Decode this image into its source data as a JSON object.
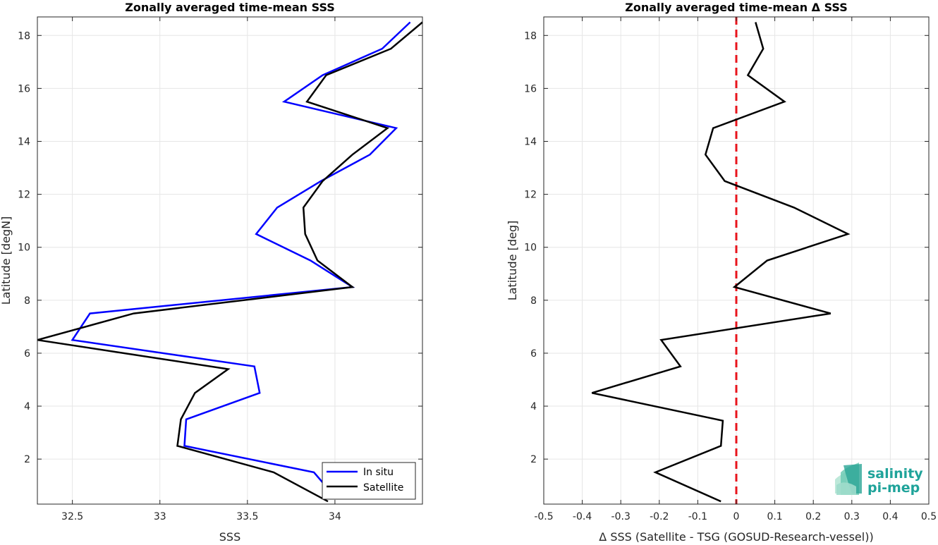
{
  "chart_data": [
    {
      "type": "line",
      "title": "Zonally averaged time-mean SSS",
      "xlabel": "SSS",
      "ylabel": "Latitude [degN]",
      "xlim": [
        32.3,
        34.5
      ],
      "ylim": [
        0.3,
        18.7
      ],
      "xticks": [
        32.5,
        33,
        33.5,
        34
      ],
      "xtick_labels": [
        "32.5",
        "33",
        "33.5",
        "34"
      ],
      "yticks": [
        2,
        4,
        6,
        8,
        10,
        12,
        14,
        16,
        18
      ],
      "ytick_labels": [
        "2",
        "4",
        "6",
        "8",
        "10",
        "12",
        "14",
        "16",
        "18"
      ],
      "grid": true,
      "legend_position": "bottom-right",
      "series": [
        {
          "name": "In situ",
          "color": "#0000ff",
          "points": [
            [
              34.01,
              0.5
            ],
            [
              33.88,
              1.5
            ],
            [
              33.14,
              2.5
            ],
            [
              33.15,
              3.5
            ],
            [
              33.57,
              4.5
            ],
            [
              33.54,
              5.5
            ],
            [
              32.5,
              6.5
            ],
            [
              32.6,
              7.5
            ],
            [
              34.1,
              8.5
            ],
            [
              33.86,
              9.5
            ],
            [
              33.55,
              10.5
            ],
            [
              33.67,
              11.5
            ],
            [
              33.92,
              12.5
            ],
            [
              34.2,
              13.5
            ],
            [
              34.35,
              14.5
            ],
            [
              33.71,
              15.5
            ],
            [
              33.93,
              16.5
            ],
            [
              34.27,
              17.5
            ],
            [
              34.43,
              18.5
            ]
          ]
        },
        {
          "name": "Satellite",
          "color": "#000000",
          "points": [
            [
              33.96,
              0.4
            ],
            [
              33.65,
              1.5
            ],
            [
              33.1,
              2.5
            ],
            [
              33.12,
              3.5
            ],
            [
              33.2,
              4.5
            ],
            [
              33.39,
              5.4
            ],
            [
              32.3,
              6.5
            ],
            [
              32.85,
              7.5
            ],
            [
              34.1,
              8.5
            ],
            [
              33.9,
              9.5
            ],
            [
              33.83,
              10.5
            ],
            [
              33.82,
              11.5
            ],
            [
              33.93,
              12.5
            ],
            [
              34.1,
              13.5
            ],
            [
              34.3,
              14.5
            ],
            [
              33.84,
              15.5
            ],
            [
              33.95,
              16.5
            ],
            [
              34.32,
              17.5
            ],
            [
              34.5,
              18.5
            ]
          ]
        }
      ]
    },
    {
      "type": "line",
      "title": "Zonally averaged time-mean Δ SSS",
      "xlabel": "Δ SSS (Satellite - TSG (GOSUD-Research-vessel))",
      "ylabel": "Latitude [deg]",
      "xlim": [
        -0.5,
        0.5
      ],
      "ylim": [
        0.3,
        18.7
      ],
      "xticks": [
        -0.5,
        -0.4,
        -0.3,
        -0.2,
        -0.1,
        0,
        0.1,
        0.2,
        0.3,
        0.4,
        0.5
      ],
      "xtick_labels": [
        "-0.5",
        "-0.4",
        "-0.3",
        "-0.2",
        "-0.1",
        "0",
        "0.1",
        "0.2",
        "0.3",
        "0.4",
        "0.5"
      ],
      "yticks": [
        2,
        4,
        6,
        8,
        10,
        12,
        14,
        16,
        18
      ],
      "ytick_labels": [
        "2",
        "4",
        "6",
        "8",
        "10",
        "12",
        "14",
        "16",
        "18"
      ],
      "grid": true,
      "reference_line": {
        "x": 0,
        "color": "#e8141c",
        "style": "dashed"
      },
      "series": [
        {
          "color": "#000000",
          "points": [
            [
              -0.04,
              0.4
            ],
            [
              -0.21,
              1.5
            ],
            [
              -0.04,
              2.5
            ],
            [
              -0.035,
              3.45
            ],
            [
              -0.375,
              4.5
            ],
            [
              -0.145,
              5.5
            ],
            [
              -0.195,
              6.5
            ],
            [
              0.245,
              7.5
            ],
            [
              -0.005,
              8.5
            ],
            [
              0.08,
              9.5
            ],
            [
              0.29,
              10.5
            ],
            [
              0.15,
              11.5
            ],
            [
              -0.03,
              12.5
            ],
            [
              -0.08,
              13.5
            ],
            [
              -0.06,
              14.5
            ],
            [
              0.125,
              15.5
            ],
            [
              0.03,
              16.5
            ],
            [
              0.07,
              17.5
            ],
            [
              0.05,
              18.5
            ]
          ]
        }
      ]
    }
  ],
  "logo": {
    "line1": "salinity",
    "line2": "pi-mep",
    "color": "#1fa39a"
  }
}
